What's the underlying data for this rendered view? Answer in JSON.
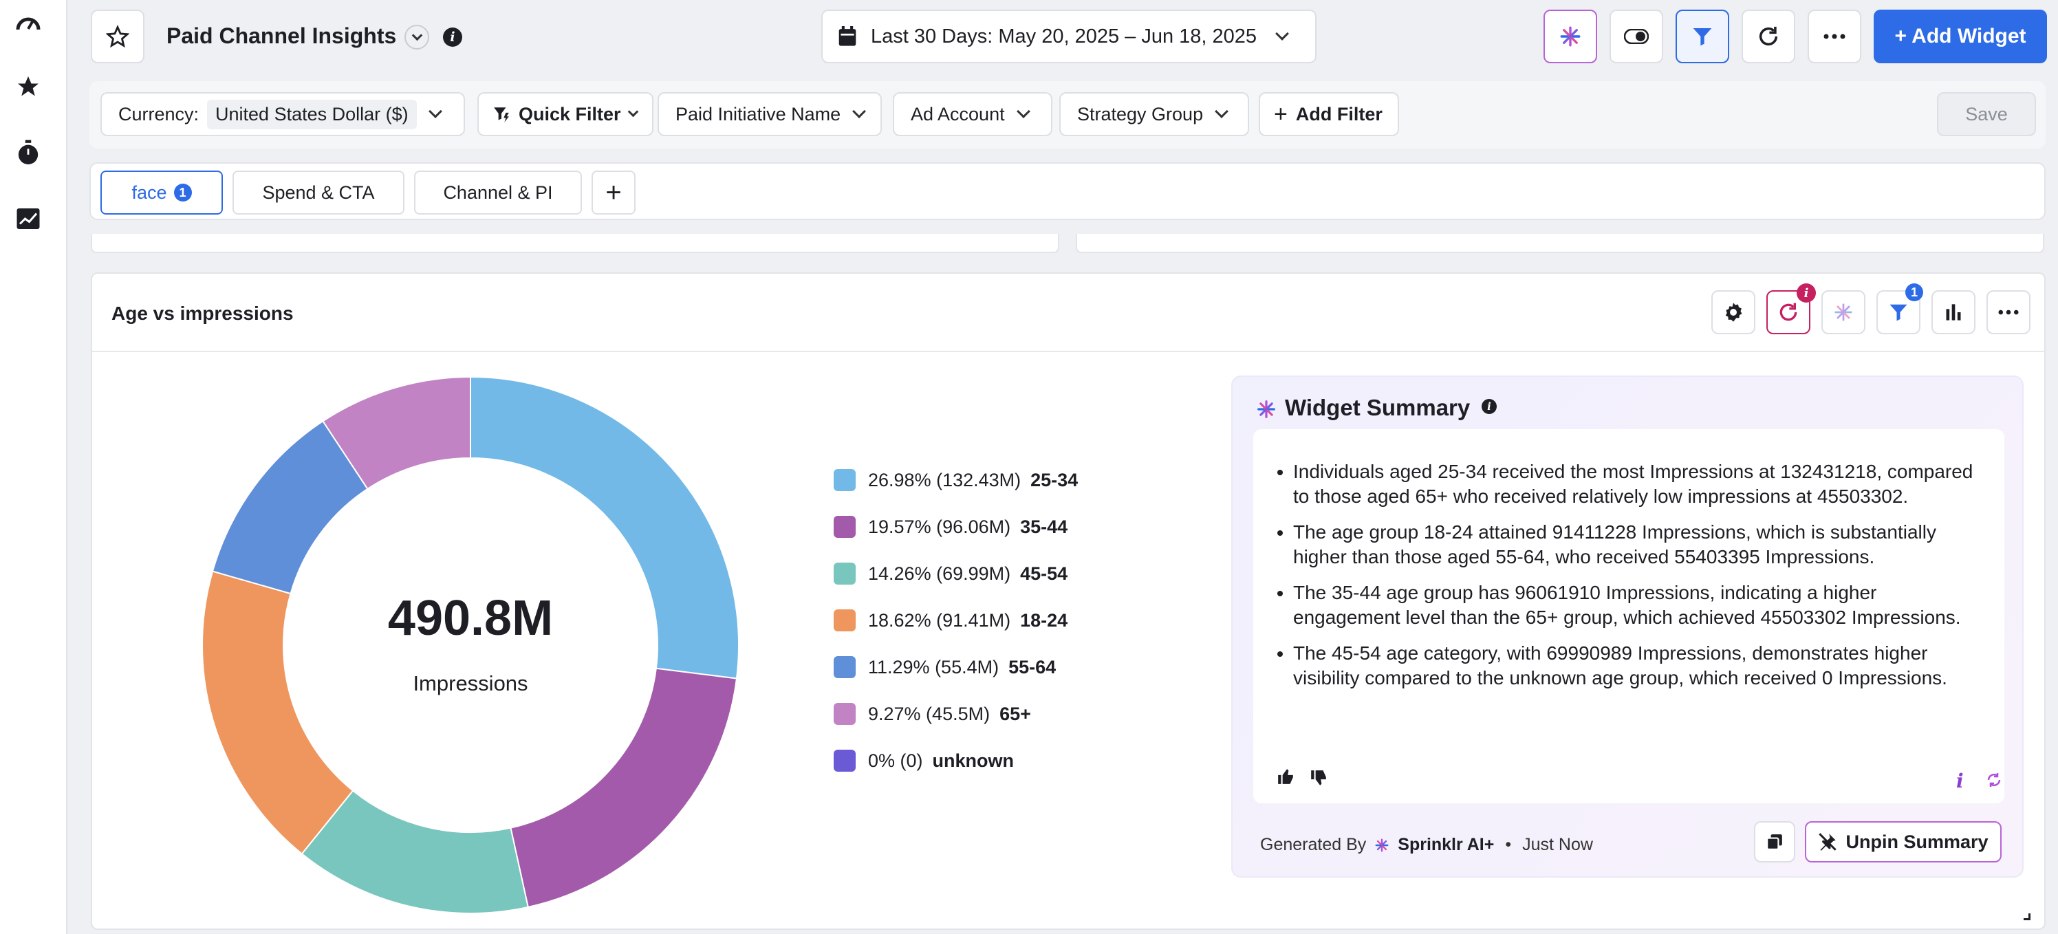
{
  "header": {
    "title": "Paid Channel Insights",
    "date_range": "Last 30 Days: May 20, 2025 – Jun 18, 2025",
    "add_widget_label": "+ Add Widget"
  },
  "filters": {
    "currency_label": "Currency:",
    "currency_value": "United States Dollar ($)",
    "quick_filter": "Quick Filter",
    "paid_initiative": "Paid Initiative Name",
    "ad_account": "Ad Account",
    "strategy_group": "Strategy Group",
    "add_filter": "Add Filter",
    "save": "Save"
  },
  "tabs": [
    {
      "label": "face",
      "badge": "1",
      "active": true
    },
    {
      "label": "Spend & CTA"
    },
    {
      "label": "Channel & PI"
    }
  ],
  "widget": {
    "title": "Age vs impressions",
    "filter_badge": "1",
    "center_value": "490.8M",
    "center_label": "Impressions"
  },
  "chart_data": {
    "type": "pie",
    "donut": true,
    "total_label": "490.8M",
    "center_text": "Impressions",
    "legend_placement": "right",
    "slices": [
      {
        "label": "25-34",
        "value": 132431218,
        "percent": 26.98,
        "short": "26.98% (132.43M)",
        "color": "#72b9e8"
      },
      {
        "label": "35-44",
        "value": 96061910,
        "percent": 19.57,
        "short": "19.57% (96.06M)",
        "color": "#a35aaa"
      },
      {
        "label": "45-54",
        "value": 69990989,
        "percent": 14.26,
        "short": "14.26% (69.99M)",
        "color": "#78c6be"
      },
      {
        "label": "18-24",
        "value": 91411228,
        "percent": 18.62,
        "short": "18.62% (91.41M)",
        "color": "#ee965d"
      },
      {
        "label": "55-64",
        "value": 55403395,
        "percent": 11.29,
        "short": "11.29% (55.4M)",
        "color": "#5f8fd8"
      },
      {
        "label": "65+",
        "value": 45503302,
        "percent": 9.27,
        "short": "9.27% (45.5M)",
        "color": "#c183c4"
      },
      {
        "label": "unknown",
        "value": 0,
        "percent": 0,
        "short": "0% (0)",
        "color": "#6a5ad6"
      }
    ]
  },
  "summary": {
    "title": "Widget Summary",
    "bullets": [
      "Individuals aged 25-34 received the most Impressions at 132431218, compared to those aged 65+ who received relatively low impressions at 45503302.",
      "The age group 18-24 attained 91411228 Impressions, which is substantially higher than those aged 55-64, who received 55403395 Impressions.",
      "The 35-44 age group has 96061910 Impressions, indicating a higher engagement level than the 65+ group, which achieved 45503302 Impressions.",
      "The 45-54 age category, with 69990989 Impressions, demonstrates higher visibility compared to the unknown age group, which received 0 Impressions."
    ],
    "generated_by": "Generated By",
    "generator": "Sprinklr AI+",
    "separator": "•",
    "time": "Just Now",
    "unpin_label": "Unpin Summary"
  }
}
